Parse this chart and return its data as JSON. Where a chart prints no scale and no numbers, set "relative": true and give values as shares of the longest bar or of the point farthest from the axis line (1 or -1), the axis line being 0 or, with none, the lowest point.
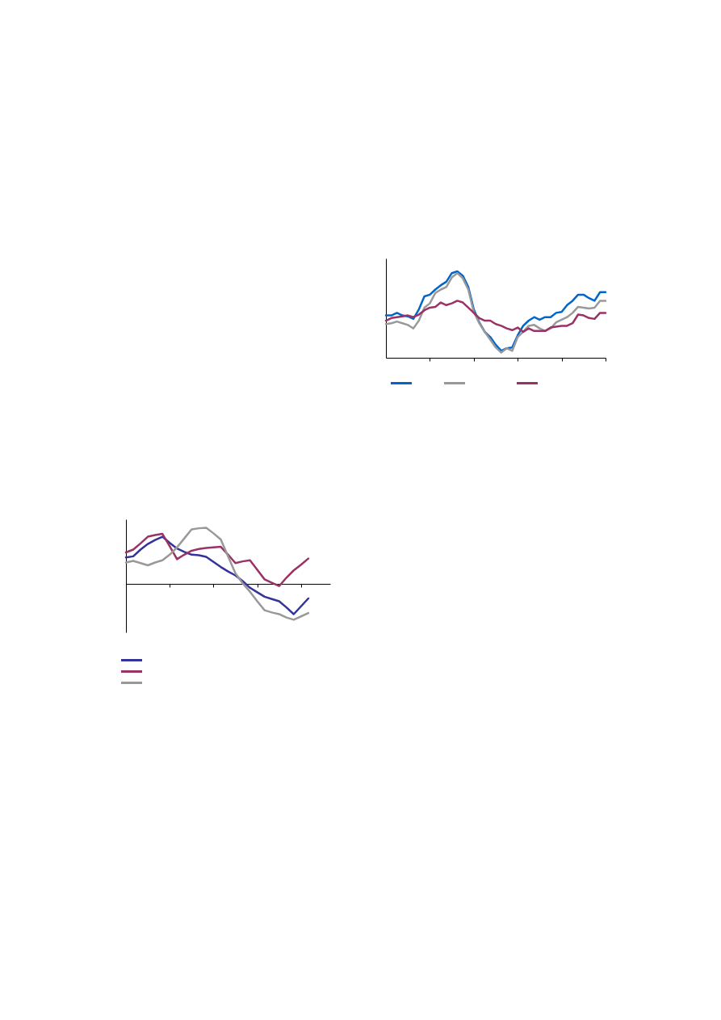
{
  "chart_data": [
    {
      "type": "line",
      "relative": true,
      "categories": [
        null,
        null,
        null,
        null,
        null,
        null,
        null,
        null,
        null,
        null,
        null,
        null,
        null,
        null,
        null,
        null,
        null,
        null,
        null,
        null,
        null,
        null,
        null,
        null,
        null,
        null,
        null,
        null,
        null,
        null,
        null,
        null,
        null,
        null,
        null,
        null,
        null,
        null,
        null,
        null,
        null
      ],
      "series": [
        {
          "color": "#0066cc",
          "values": [
            0.49,
            0.49,
            0.52,
            0.49,
            0.48,
            0.45,
            0.56,
            0.71,
            0.73,
            0.79,
            0.84,
            0.88,
            0.98,
            1.0,
            0.95,
            0.82,
            0.56,
            0.41,
            0.3,
            0.24,
            0.15,
            0.08,
            0.11,
            0.12,
            0.26,
            0.37,
            0.43,
            0.47,
            0.44,
            0.47,
            0.47,
            0.52,
            0.53,
            0.61,
            0.66,
            0.73,
            0.73,
            0.69,
            0.66,
            0.76,
            0.76
          ]
        },
        {
          "color": "#999999",
          "values": [
            0.39,
            0.4,
            0.42,
            0.4,
            0.38,
            0.34,
            0.43,
            0.58,
            0.63,
            0.75,
            0.79,
            0.82,
            0.93,
            0.98,
            0.92,
            0.79,
            0.53,
            0.4,
            0.3,
            0.21,
            0.12,
            0.06,
            0.11,
            0.08,
            0.24,
            0.3,
            0.37,
            0.38,
            0.34,
            0.31,
            0.34,
            0.41,
            0.44,
            0.47,
            0.52,
            0.59,
            0.58,
            0.57,
            0.58,
            0.66,
            0.66
          ]
        },
        {
          "color": "#993366",
          "values": [
            0.43,
            0.46,
            0.47,
            0.48,
            0.49,
            0.47,
            0.5,
            0.55,
            0.58,
            0.59,
            0.64,
            0.61,
            0.63,
            0.66,
            0.64,
            0.58,
            0.52,
            0.46,
            0.43,
            0.43,
            0.39,
            0.37,
            0.34,
            0.32,
            0.35,
            0.3,
            0.34,
            0.31,
            0.31,
            0.31,
            0.35,
            0.36,
            0.37,
            0.37,
            0.4,
            0.5,
            0.49,
            0.46,
            0.45,
            0.52,
            0.52
          ]
        }
      ]
    },
    {
      "type": "line",
      "relative": true,
      "categories": [
        null,
        null,
        null,
        null,
        null,
        null,
        null,
        null,
        null,
        null,
        null,
        null,
        null,
        null,
        null,
        null,
        null,
        null,
        null,
        null,
        null,
        null,
        null,
        null,
        null,
        null,
        null,
        null,
        null
      ],
      "series": [
        {
          "color": "#333399",
          "values": [
            0.47,
            0.49,
            0.61,
            0.71,
            0.78,
            0.84,
            0.73,
            0.63,
            0.57,
            0.52,
            0.51,
            0.48,
            0.39,
            0.3,
            0.22,
            0.15,
            0.05,
            -0.07,
            -0.15,
            -0.23,
            -0.27,
            -0.31,
            -0.42,
            -0.54,
            -0.4,
            -0.26,
            null,
            null,
            null
          ]
        },
        {
          "color": "#993366",
          "values": [
            0.56,
            0.61,
            0.72,
            0.84,
            0.87,
            0.89,
            0.67,
            0.44,
            0.52,
            0.59,
            0.62,
            0.64,
            0.65,
            0.66,
            0.52,
            0.37,
            0.4,
            0.42,
            0.25,
            0.08,
            0.02,
            -0.04,
            0.11,
            0.24,
            0.34,
            0.45,
            null,
            null,
            null
          ]
        },
        {
          "color": "#999999",
          "values": [
            0.38,
            0.41,
            0.37,
            0.33,
            0.38,
            0.42,
            0.52,
            0.65,
            0.81,
            0.97,
            0.99,
            1.0,
            0.9,
            0.79,
            0.49,
            0.19,
            0.01,
            -0.14,
            -0.31,
            -0.47,
            -0.51,
            -0.54,
            -0.6,
            -0.64,
            -0.58,
            -0.52,
            null,
            null,
            null
          ]
        }
      ]
    }
  ]
}
